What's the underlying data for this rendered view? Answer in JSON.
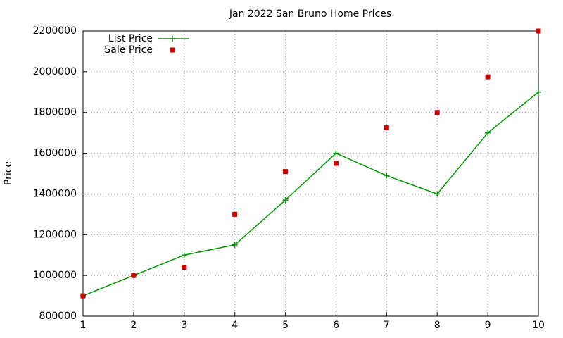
{
  "chart_data": {
    "type": "line",
    "title": "Jan 2022 San Bruno Home Prices",
    "y_label": "Price",
    "x": [
      1,
      2,
      3,
      4,
      5,
      6,
      7,
      8,
      9,
      10
    ],
    "series": [
      {
        "name": "List Price",
        "color": "#009900",
        "line": true,
        "marker": "plus",
        "values": [
          900000,
          1000000,
          1100000,
          1150000,
          1370000,
          1600000,
          1490000,
          1400000,
          1700000,
          1900000
        ]
      },
      {
        "name": "Sale Price",
        "color": "#cc0000",
        "line": false,
        "marker": "square",
        "values": [
          900000,
          1000000,
          1040000,
          1300000,
          1510000,
          1550000,
          1725000,
          1800000,
          1975000,
          2200000
        ]
      }
    ],
    "xlim": [
      1,
      10
    ],
    "xticks": [
      1,
      2,
      3,
      4,
      5,
      6,
      7,
      8,
      9,
      10
    ],
    "ylim": [
      800000,
      2200000
    ],
    "yticks": [
      800000,
      1000000,
      1200000,
      1400000,
      1600000,
      1800000,
      2000000,
      2200000
    ],
    "grid": true,
    "legend": "top-left"
  }
}
